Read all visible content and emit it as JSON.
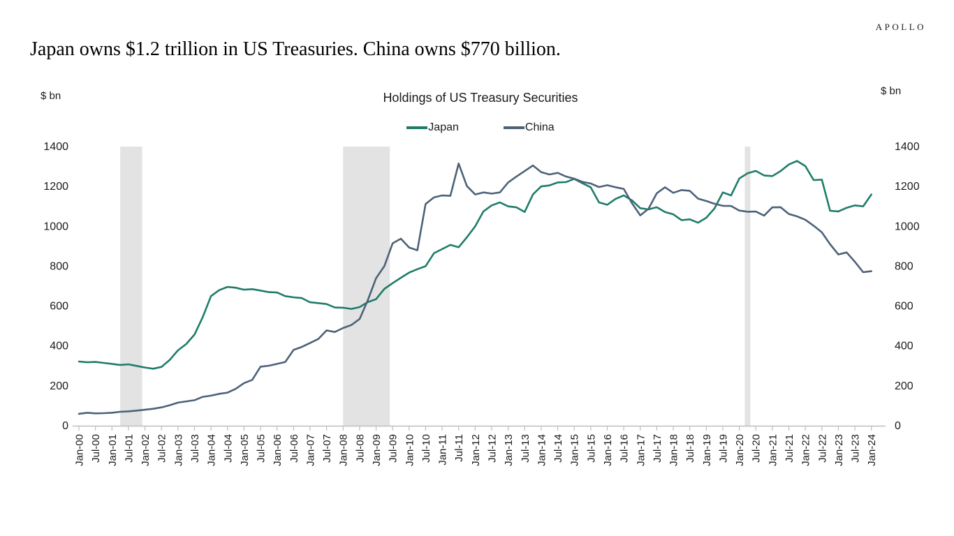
{
  "branding": {
    "logo": "APOLLO"
  },
  "headline": "Japan owns $1.2 trillion in US Treasuries. China owns $770 billion.",
  "chart_data": {
    "type": "line",
    "title": "Holdings of US Treasury Securities",
    "y_axis_label_left": "$ bn",
    "y_axis_label_right": "$ bn",
    "ylim": [
      0,
      1400
    ],
    "y_ticks": [
      0,
      200,
      400,
      600,
      800,
      1000,
      1200,
      1400
    ],
    "grid": false,
    "legend_position": "top-center",
    "x_start": "Jan-00",
    "x_end": "Jan-24",
    "x_tick_labels": [
      "Jan-00",
      "Jul-00",
      "Jan-01",
      "Jul-01",
      "Jan-02",
      "Jul-02",
      "Jan-03",
      "Jul-03",
      "Jan-04",
      "Jul-04",
      "Jan-05",
      "Jul-05",
      "Jan-06",
      "Jul-06",
      "Jan-07",
      "Jul-07",
      "Jan-08",
      "Jul-08",
      "Jan-09",
      "Jul-09",
      "Jan-10",
      "Jul-10",
      "Jan-11",
      "Jul-11",
      "Jan-12",
      "Jul-12",
      "Jan-13",
      "Jul-13",
      "Jan-14",
      "Jul-14",
      "Jan-15",
      "Jul-15",
      "Jan-16",
      "Jul-16",
      "Jan-17",
      "Jul-17",
      "Jan-18",
      "Jul-18",
      "Jan-19",
      "Jul-19",
      "Jan-20",
      "Jul-20",
      "Jan-21",
      "Jul-21",
      "Jan-22",
      "Jul-22",
      "Jan-23",
      "Jul-23",
      "Jan-24"
    ],
    "points_every_months": 3,
    "recession_bands_months": [
      [
        15,
        23
      ],
      [
        96,
        113
      ],
      [
        242,
        244
      ]
    ],
    "series": [
      {
        "name": "Japan",
        "color": "#1e7c68",
        "values": [
          322,
          318,
          320,
          315,
          310,
          305,
          308,
          300,
          292,
          286,
          295,
          330,
          378,
          410,
          457,
          545,
          650,
          680,
          696,
          692,
          682,
          685,
          678,
          670,
          668,
          650,
          644,
          640,
          619,
          615,
          610,
          593,
          592,
          586,
          595,
          620,
          635,
          686,
          715,
          742,
          768,
          785,
          800,
          865,
          886,
          907,
          895,
          945,
          1000,
          1075,
          1105,
          1120,
          1100,
          1095,
          1072,
          1160,
          1200,
          1205,
          1220,
          1222,
          1238,
          1216,
          1196,
          1120,
          1108,
          1137,
          1155,
          1130,
          1091,
          1085,
          1096,
          1072,
          1060,
          1031,
          1035,
          1018,
          1043,
          1090,
          1170,
          1155,
          1240,
          1266,
          1278,
          1255,
          1252,
          1277,
          1310,
          1328,
          1302,
          1232,
          1234,
          1078,
          1075,
          1093,
          1105,
          1100,
          1160
        ]
      },
      {
        "name": "China",
        "color": "#4d6278",
        "values": [
          60,
          65,
          62,
          63,
          65,
          70,
          72,
          76,
          80,
          85,
          92,
          103,
          116,
          122,
          128,
          145,
          151,
          160,
          166,
          185,
          214,
          230,
          296,
          301,
          310,
          320,
          380,
          395,
          415,
          435,
          478,
          470,
          490,
          505,
          535,
          630,
          740,
          800,
          915,
          938,
          894,
          880,
          1112,
          1145,
          1155,
          1153,
          1315,
          1202,
          1160,
          1170,
          1164,
          1170,
          1220,
          1250,
          1277,
          1305,
          1272,
          1260,
          1268,
          1250,
          1239,
          1223,
          1215,
          1197,
          1206,
          1196,
          1188,
          1116,
          1055,
          1088,
          1166,
          1196,
          1168,
          1182,
          1178,
          1139,
          1127,
          1113,
          1103,
          1102,
          1079,
          1073,
          1074,
          1054,
          1095,
          1096,
          1062,
          1050,
          1033,
          1003,
          970,
          910,
          859,
          869,
          822,
          770,
          775
        ]
      }
    ],
    "colors": {
      "recession_band": "#e3e3e3",
      "axis": "#bfbfbf",
      "tick_text": "#1a1a1a"
    }
  }
}
